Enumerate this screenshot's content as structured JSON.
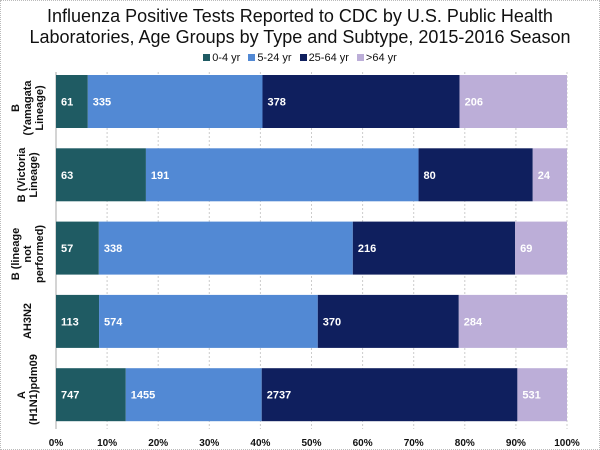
{
  "chart_data": {
    "type": "bar",
    "orientation": "horizontal",
    "stacked": "percent",
    "title": "Influenza Positive Tests Reported to CDC by U.S. Public Health Laboratories, Age Groups by Type and Subtype, 2015-2016 Season",
    "title_lines": [
      "Influenza Positive Tests Reported to CDC by U.S. Public Health",
      "Laboratories, Age Groups by Type and Subtype, 2015-2016 Season"
    ],
    "categories": [
      [
        "B (Yamagata",
        "Lineage)"
      ],
      [
        "B (Victoria",
        "Lineage)"
      ],
      [
        "B (lineage not",
        "performed)"
      ],
      [
        "AH3N2",
        ""
      ],
      [
        "A",
        "(H1N1)pdm09"
      ]
    ],
    "series": [
      {
        "name": "0-4 yr",
        "color": "#1f5b63",
        "values": [
          61,
          63,
          57,
          113,
          747
        ]
      },
      {
        "name": "5-24 yr",
        "color": "#5289d4",
        "values": [
          335,
          191,
          338,
          574,
          1455
        ]
      },
      {
        "name": "25-64 yr",
        "color": "#0f1f5e",
        "values": [
          378,
          80,
          216,
          370,
          2737
        ]
      },
      {
        "name": ">64 yr",
        "color": "#bcaed8",
        "values": [
          206,
          24,
          69,
          284,
          531
        ]
      }
    ],
    "xlim": [
      0,
      100
    ],
    "xticks": [
      "0%",
      "10%",
      "20%",
      "30%",
      "40%",
      "50%",
      "60%",
      "70%",
      "80%",
      "90%",
      "100%"
    ],
    "grid": true,
    "legend_position": "top"
  }
}
